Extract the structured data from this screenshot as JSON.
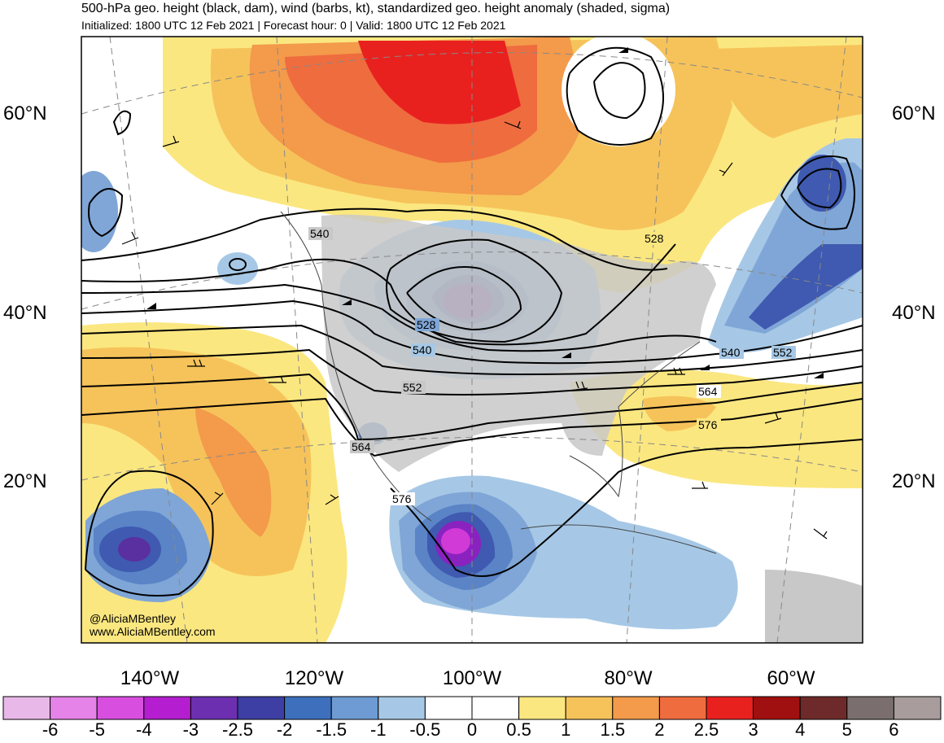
{
  "header": {
    "title": "500-hPa geo. height (black, dam), wind (barbs, kt), standardized geo. height anomaly (shaded, sigma)",
    "subtitle": "Initialized: 1800 UTC 12 Feb 2021 | Forecast hour: 0 | Valid: 1800 UTC 12 Feb 2021"
  },
  "map": {
    "lat_labels": [
      "60°N",
      "40°N",
      "20°N"
    ],
    "lon_labels": [
      "140°W",
      "120°W",
      "100°W",
      "80°W",
      "60°W"
    ],
    "contour_labels": [
      "540",
      "528",
      "528",
      "540",
      "552",
      "564",
      "576",
      "576",
      "564",
      "552",
      "540"
    ],
    "credit_line1": "@AliciaMBentley",
    "credit_line2": "www.AliciaMBentley.com",
    "colors": {
      "land": "#c8c8c8",
      "pos05": "#fbe780",
      "pos1": "#f6c35a",
      "pos15": "#f39a4b",
      "pos2": "#ef6c3e",
      "pos25": "#e8211f",
      "neg05": "#a6c8e6",
      "neg1": "#7fa6d6",
      "neg15": "#5a84c6",
      "neg2": "#3f5ab0",
      "neg25": "#5a2fa0",
      "neg3": "#8a22c0",
      "neg4": "#d23ad8"
    }
  },
  "colorbar": {
    "labels": [
      "-6",
      "-5",
      "-4",
      "-3",
      "-2.5",
      "-2",
      "-1.5",
      "-1",
      "-0.5",
      "0",
      "0.5",
      "1",
      "1.5",
      "2",
      "2.5",
      "3",
      "4",
      "5",
      "6"
    ],
    "colors": [
      "#e8b8e8",
      "#e583e8",
      "#d84fe0",
      "#b41ed0",
      "#6c2fb0",
      "#3d3fa5",
      "#3d6fbc",
      "#6e9bd3",
      "#a6c8e6",
      "#ffffff",
      "#ffffff",
      "#fbe780",
      "#f6c35a",
      "#f39a4b",
      "#ef6c3e",
      "#e8211f",
      "#a01010",
      "#6e2a2a",
      "#7a6e6e",
      "#a89c9c"
    ]
  }
}
